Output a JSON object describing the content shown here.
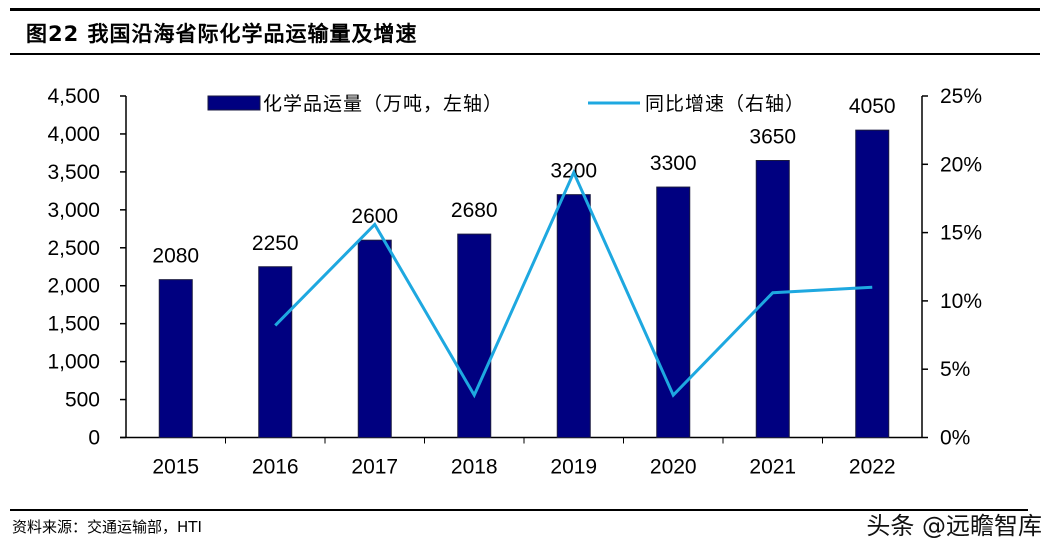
{
  "title": "图22  我国沿海省际化学品运输量及增速",
  "source": "资料来源：交通运输部，HTI",
  "watermark": "头条 @远瞻智库",
  "chart_data": {
    "type": "bar+line",
    "categories": [
      "2015",
      "2016",
      "2017",
      "2018",
      "2019",
      "2020",
      "2021",
      "2022"
    ],
    "series": [
      {
        "name": "化学品运量（万吨，左轴）",
        "type": "bar",
        "axis": "left",
        "color": "#000080",
        "values": [
          2080,
          2250,
          2600,
          2680,
          3200,
          3300,
          3650,
          4050
        ],
        "labels": [
          "2080",
          "2250",
          "2600",
          "2680",
          "3200",
          "3300",
          "3650",
          "4050"
        ]
      },
      {
        "name": "同比增速（右轴）",
        "type": "line",
        "axis": "right",
        "color": "#1EA8E0",
        "values": [
          null,
          8.2,
          15.6,
          3.1,
          19.4,
          3.1,
          10.6,
          11.0
        ]
      }
    ],
    "left_axis": {
      "range": [
        0,
        4500
      ],
      "ticks": [
        "0",
        "500",
        "1,000",
        "1,500",
        "2,000",
        "2,500",
        "3,000",
        "3,500",
        "4,000",
        "4,500"
      ]
    },
    "right_axis": {
      "range": [
        0,
        25
      ],
      "unit": "%",
      "ticks": [
        "0%",
        "5%",
        "10%",
        "15%",
        "20%",
        "25%"
      ]
    },
    "grid": false,
    "legend": "top"
  }
}
